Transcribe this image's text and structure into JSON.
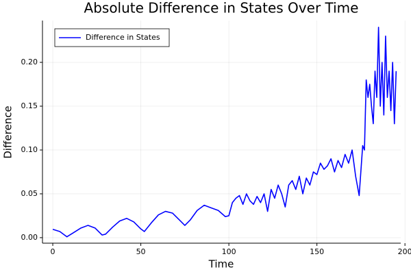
{
  "chart_data": {
    "type": "line",
    "title": "Absolute Difference in States Over Time",
    "xlabel": "Time",
    "ylabel": "Difference",
    "x": [
      0,
      4,
      8,
      12,
      16,
      20,
      24,
      28,
      30,
      34,
      38,
      42,
      46,
      50,
      52,
      56,
      60,
      64,
      68,
      72,
      75,
      78,
      82,
      86,
      90,
      94,
      98,
      100,
      102,
      104,
      106,
      108,
      110,
      112,
      114,
      116,
      118,
      120,
      122,
      124,
      126,
      128,
      130,
      132,
      134,
      136,
      138,
      140,
      142,
      144,
      146,
      148,
      150,
      152,
      154,
      156,
      158,
      160,
      162,
      164,
      166,
      168,
      170,
      172,
      174,
      176,
      177,
      178,
      179,
      180,
      181,
      182,
      183,
      184,
      185,
      186,
      187,
      188,
      189,
      190,
      191,
      192,
      193,
      194,
      195
    ],
    "series": [
      {
        "name": "Difference in States",
        "color": "#0000ff",
        "values": [
          0.0095,
          0.007,
          0.001,
          0.006,
          0.011,
          0.014,
          0.011,
          0.003,
          0.004,
          0.012,
          0.019,
          0.022,
          0.018,
          0.01,
          0.007,
          0.017,
          0.026,
          0.03,
          0.028,
          0.02,
          0.014,
          0.02,
          0.031,
          0.037,
          0.034,
          0.031,
          0.024,
          0.025,
          0.04,
          0.045,
          0.048,
          0.038,
          0.05,
          0.042,
          0.038,
          0.047,
          0.04,
          0.05,
          0.03,
          0.055,
          0.045,
          0.06,
          0.05,
          0.035,
          0.06,
          0.065,
          0.055,
          0.07,
          0.05,
          0.068,
          0.06,
          0.075,
          0.072,
          0.085,
          0.078,
          0.082,
          0.09,
          0.075,
          0.088,
          0.08,
          0.095,
          0.085,
          0.1,
          0.07,
          0.048,
          0.105,
          0.1,
          0.18,
          0.16,
          0.175,
          0.15,
          0.13,
          0.19,
          0.16,
          0.24,
          0.15,
          0.2,
          0.14,
          0.23,
          0.16,
          0.19,
          0.145,
          0.2,
          0.13,
          0.19
        ]
      }
    ],
    "xlim": [
      -5.85,
      197.6
    ],
    "ylim": [
      -0.0063,
      0.2477
    ],
    "xticks": [
      0,
      50,
      100,
      150,
      200
    ],
    "yticks": [
      {
        "value": 0,
        "label": "0.00"
      },
      {
        "value": 0.05,
        "label": "0.05"
      },
      {
        "value": 0.1,
        "label": "0.10"
      },
      {
        "value": 0.15,
        "label": "0.15"
      },
      {
        "value": 0.2,
        "label": "0.20"
      }
    ],
    "grid": true,
    "legend": "top-left"
  }
}
